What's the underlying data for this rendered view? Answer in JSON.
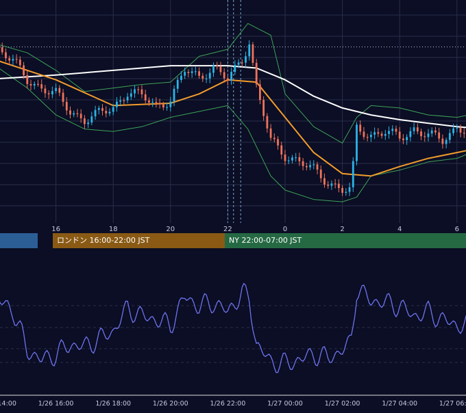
{
  "colors": {
    "background": "#0b0e24",
    "grid": "#2a2e4a",
    "candle_up": "#2bb5e8",
    "candle_down": "#f0735c",
    "sma_short": "#f39c2c",
    "sma_long": "#ffffff",
    "bollinger": "#3fa35a",
    "rsi": "#6f73f0",
    "session_tokyo": "#2c5e96",
    "session_london": "#8a5a14",
    "session_ny": "#256943",
    "marker_line": "#7aa7d8"
  },
  "sessions": [
    {
      "label": "",
      "color": "#2c5e96"
    },
    {
      "label": "ロンドン 16:00-22:00 JST",
      "color": "#8a5a14"
    },
    {
      "label": "NY 22:00-07:00 JST",
      "color": "#256943"
    }
  ],
  "chart_data": [
    {
      "type": "line",
      "title": "",
      "panel": "price",
      "x_ticks": [
        "16",
        "18",
        "20",
        "22",
        "0",
        "2",
        "4",
        "6"
      ],
      "x_hours": [
        14,
        16,
        18,
        20,
        22,
        24,
        26,
        28,
        30,
        31
      ],
      "series": [
        {
          "kind": "candles",
          "x": [
            14.0,
            14.5,
            15.0,
            15.5,
            16.0,
            16.5,
            17.0,
            17.5,
            18.0,
            18.5,
            19.0,
            19.5,
            20.0,
            20.5,
            21.0,
            21.5,
            22.0,
            22.5,
            22.75,
            23.0,
            23.5,
            24.0,
            24.5,
            25.0,
            25.5,
            26.0,
            26.3,
            26.5,
            27.0,
            27.5,
            28.0,
            28.5,
            29.0,
            29.5,
            30.0,
            30.5,
            31.0
          ],
          "close": [
            155.88,
            155.78,
            155.62,
            155.55,
            155.5,
            155.35,
            155.28,
            155.33,
            155.38,
            155.52,
            155.48,
            155.4,
            155.45,
            155.7,
            155.65,
            155.72,
            155.62,
            155.8,
            155.95,
            155.55,
            155.1,
            154.98,
            154.92,
            154.85,
            154.75,
            154.68,
            154.68,
            155.2,
            155.15,
            155.18,
            155.12,
            155.2,
            155.15,
            155.1,
            155.22,
            155.18,
            155.25
          ]
        },
        {
          "name": "",
          "kind": "sma_short",
          "x": [
            14,
            16,
            18,
            20,
            21,
            22,
            23,
            24,
            25,
            26,
            27,
            28,
            29,
            30,
            31
          ],
          "values": [
            155.78,
            155.62,
            155.4,
            155.42,
            155.5,
            155.62,
            155.6,
            155.3,
            155.0,
            154.82,
            154.8,
            154.88,
            154.95,
            155.0,
            155.05
          ]
        },
        {
          "name": "",
          "kind": "sma_long",
          "x": [
            14,
            16,
            18,
            20,
            22,
            23,
            24,
            25,
            26,
            27,
            28,
            29,
            30,
            31
          ],
          "values": [
            155.63,
            155.66,
            155.7,
            155.74,
            155.74,
            155.72,
            155.62,
            155.48,
            155.38,
            155.32,
            155.28,
            155.25,
            155.22,
            155.2
          ]
        },
        {
          "name": "",
          "kind": "bollinger_upper",
          "x": [
            14,
            15,
            16,
            17,
            18,
            19,
            20,
            21,
            22,
            22.7,
            23.5,
            24,
            25,
            26,
            26.5,
            27,
            28,
            29,
            30,
            31
          ],
          "values": [
            155.92,
            155.85,
            155.7,
            155.52,
            155.55,
            155.58,
            155.6,
            155.82,
            155.88,
            156.1,
            156.0,
            155.5,
            155.22,
            155.08,
            155.3,
            155.4,
            155.38,
            155.32,
            155.3,
            155.35
          ]
        },
        {
          "name": "",
          "kind": "bollinger_lower",
          "x": [
            14,
            15,
            16,
            17,
            18,
            19,
            20,
            21,
            22,
            22.7,
            23.5,
            24,
            25,
            26,
            26.5,
            27,
            28,
            29,
            30,
            31
          ],
          "values": [
            155.72,
            155.55,
            155.32,
            155.2,
            155.18,
            155.22,
            155.3,
            155.35,
            155.4,
            155.2,
            154.8,
            154.68,
            154.6,
            154.58,
            154.62,
            154.8,
            154.85,
            154.92,
            154.95,
            155.05
          ]
        }
      ],
      "reference_line": {
        "style": "dotted",
        "value": 155.9
      },
      "markers_x": [
        22.0,
        22.2,
        22.45
      ],
      "ylim": [
        154.4,
        156.3
      ],
      "grid": true
    },
    {
      "type": "line",
      "title": "",
      "panel": "rsi",
      "x_ticks": [
        "1/26 14:00",
        "1/26 16:00",
        "1/26 18:00",
        "1/26 20:00",
        "1/26 22:00",
        "1/27 00:00",
        "1/27 02:00",
        "1/27 04:00",
        "1/27 06:00"
      ],
      "series": [
        {
          "name": "",
          "x": [
            14.0,
            14.5,
            15.0,
            15.5,
            16.0,
            16.5,
            17.0,
            17.5,
            18.0,
            18.5,
            19.0,
            19.5,
            20.0,
            20.5,
            21.0,
            21.5,
            22.0,
            22.5,
            22.75,
            23.0,
            23.5,
            24.0,
            24.5,
            25.0,
            25.5,
            26.0,
            26.3,
            26.5,
            27.0,
            27.5,
            28.0,
            28.5,
            29.0,
            29.5,
            30.0,
            30.5,
            31.0
          ],
          "values": [
            68,
            63,
            42,
            37,
            40,
            45,
            44,
            48,
            52,
            64,
            60,
            58,
            55,
            70,
            65,
            67,
            62,
            72,
            69,
            45,
            36,
            35,
            37,
            40,
            38,
            42,
            46,
            74,
            68,
            67,
            65,
            60,
            62,
            58,
            55,
            56,
            58
          ]
        }
      ],
      "ylim": [
        25,
        85
      ],
      "grid": true
    }
  ]
}
